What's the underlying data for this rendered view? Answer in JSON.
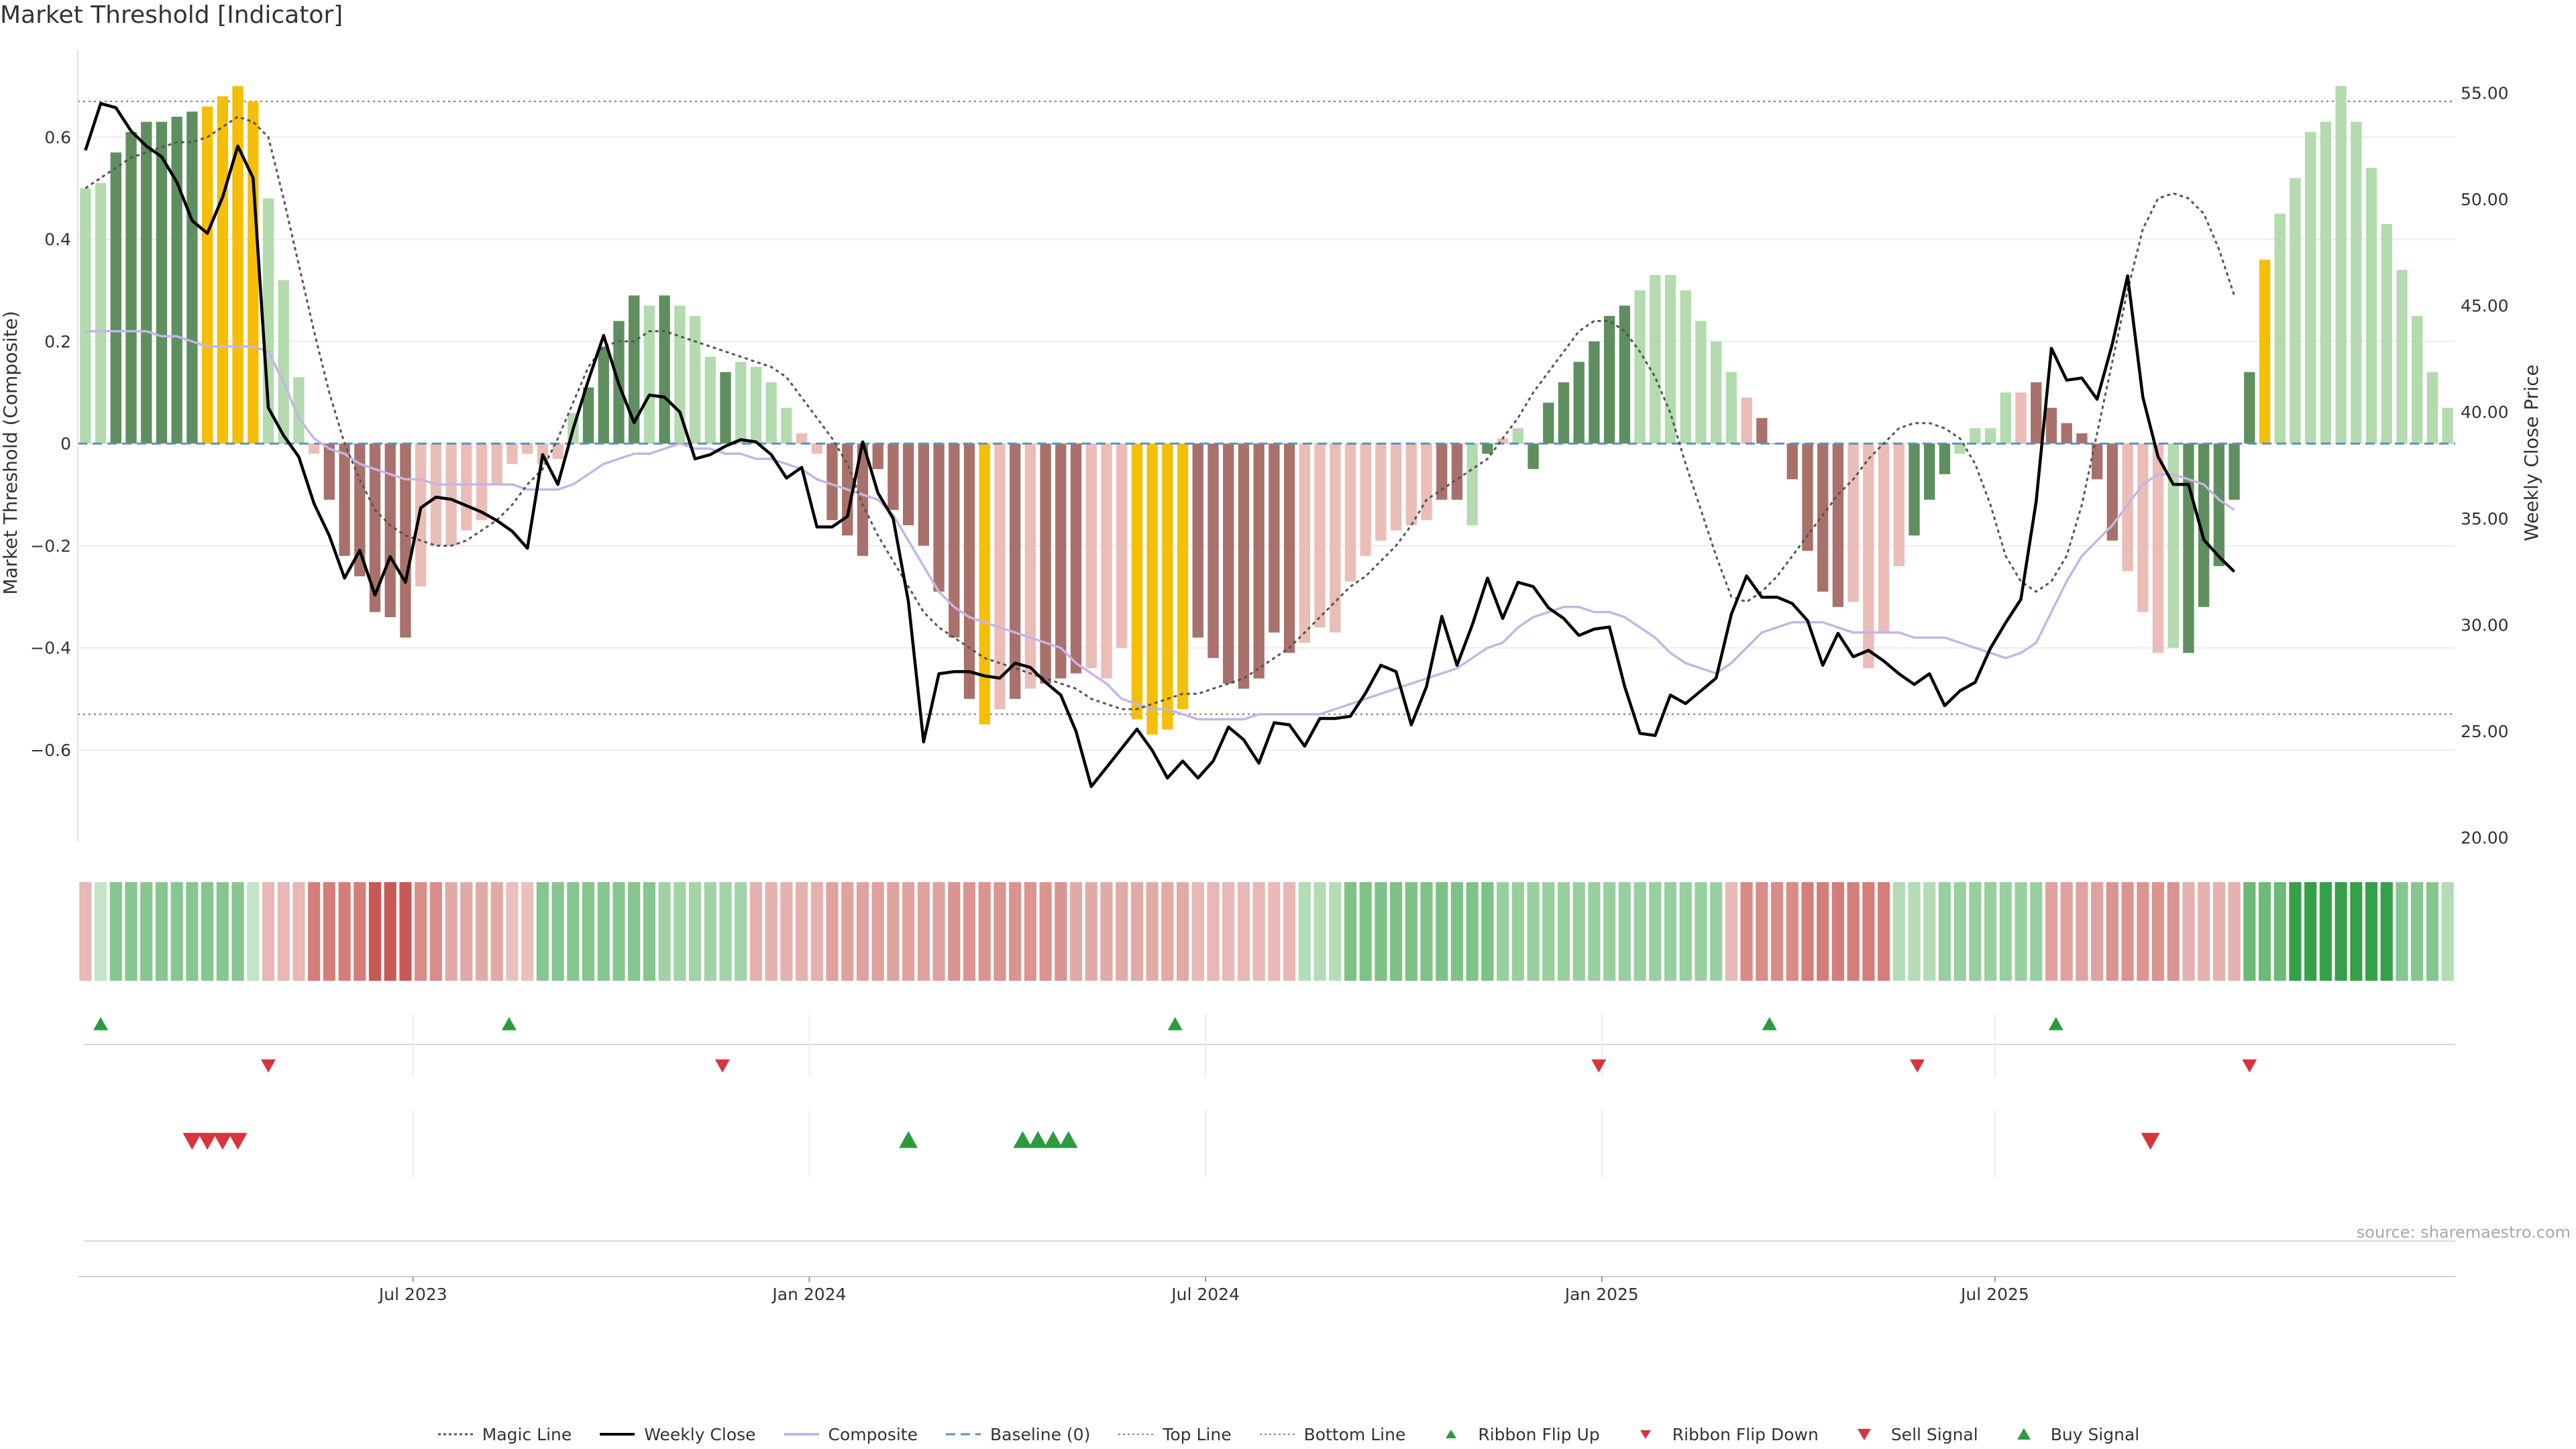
{
  "title": "Market Threshold [Indicator]",
  "source": "source: sharemaestro.com",
  "colors": {
    "green_dark": "#5f8f5f",
    "green_light": "#b3dbae",
    "red_dark": "#a9716b",
    "red_light": "#ebbdb7",
    "gold": "#f5bf09",
    "weekly_close": "#000000",
    "composite": "#c3b6e3",
    "magic": "#555555",
    "baseline": "#5b90c4",
    "buy": "#2e9a3e",
    "sell": "#d9343e"
  },
  "legend": [
    {
      "label": "Magic Line",
      "icon": "dotted-line"
    },
    {
      "label": "Weekly Close",
      "icon": "solid-line"
    },
    {
      "label": "Composite",
      "icon": "thin-line"
    },
    {
      "label": "Baseline (0)",
      "icon": "dashed-line"
    },
    {
      "label": "Top Line",
      "icon": "fine-dotted-line"
    },
    {
      "label": "Bottom Line",
      "icon": "fine-dotted-line"
    },
    {
      "label": "Ribbon Flip Up",
      "icon": "triangle-up-small"
    },
    {
      "label": "Ribbon Flip Down",
      "icon": "triangle-down-small"
    },
    {
      "label": "Sell Signal",
      "icon": "triangle-down"
    },
    {
      "label": "Buy Signal",
      "icon": "triangle-up"
    }
  ],
  "chart_data": {
    "type": "bar",
    "ylabel": "Market Threshold (Composite)",
    "y2label": "Weekly Close Price",
    "ylim": [
      -0.78,
      0.77
    ],
    "y2lim": [
      19.8,
      57.0
    ],
    "yticks": [
      0.6,
      0.4,
      0.2,
      0,
      -0.2,
      -0.4,
      -0.6
    ],
    "ytick_labels": [
      "0.6",
      "0.4",
      "0.2",
      "0",
      "−0.2",
      "−0.4",
      "−0.6"
    ],
    "y2ticks": [
      55,
      50,
      45,
      40,
      35,
      30,
      25,
      20
    ],
    "y2tick_labels": [
      "55.00",
      "50.00",
      "45.00",
      "40.00",
      "35.00",
      "30.00",
      "25.00",
      "20.00"
    ],
    "xlabels": [
      {
        "label": "Jul 2023",
        "week": 21.5
      },
      {
        "label": "Jan 2024",
        "week": 47.5
      },
      {
        "label": "Jul 2024",
        "week": 73.5
      },
      {
        "label": "Jan 2025",
        "week": 99.5
      },
      {
        "label": "Jul 2025",
        "week": 125.3
      }
    ],
    "top_line": 0.67,
    "bottom_line": -0.53,
    "baseline": 0,
    "bar_values": [
      0.5,
      0.51,
      0.57,
      0.61,
      0.63,
      0.63,
      0.64,
      0.65,
      0.66,
      0.68,
      0.7,
      0.67,
      0.48,
      0.32,
      0.13,
      -0.02,
      -0.11,
      -0.22,
      -0.26,
      -0.33,
      -0.34,
      -0.38,
      -0.28,
      -0.2,
      -0.2,
      -0.17,
      -0.15,
      -0.08,
      -0.04,
      -0.02,
      -0.04,
      -0.03,
      0.06,
      0.11,
      0.19,
      0.24,
      0.29,
      0.27,
      0.29,
      0.27,
      0.25,
      0.17,
      0.14,
      0.16,
      0.15,
      0.12,
      0.07,
      0.02,
      -0.02,
      -0.15,
      -0.18,
      -0.22,
      -0.05,
      -0.13,
      -0.16,
      -0.2,
      -0.29,
      -0.38,
      -0.5,
      -0.55,
      -0.52,
      -0.5,
      -0.48,
      -0.47,
      -0.46,
      -0.45,
      -0.44,
      -0.46,
      -0.4,
      -0.54,
      -0.57,
      -0.56,
      -0.52,
      -0.38,
      -0.42,
      -0.47,
      -0.48,
      -0.46,
      -0.37,
      -0.41,
      -0.39,
      -0.36,
      -0.37,
      -0.27,
      -0.22,
      -0.19,
      -0.17,
      -0.16,
      -0.15,
      -0.11,
      -0.11,
      -0.16,
      -0.02,
      0.01,
      0.03,
      -0.05,
      0.08,
      0.12,
      0.16,
      0.2,
      0.25,
      0.27,
      0.3,
      0.33,
      0.33,
      0.3,
      0.24,
      0.2,
      0.14,
      0.09,
      0.05,
      0,
      -0.07,
      -0.21,
      -0.29,
      -0.32,
      -0.31,
      -0.44,
      -0.37,
      -0.24,
      -0.18,
      -0.11,
      -0.06,
      -0.02,
      0.03,
      0.03,
      0.1,
      0.1,
      0.12,
      0.07,
      0.04,
      0.02,
      -0.07,
      -0.19,
      -0.25,
      -0.33,
      -0.41,
      -0.4,
      -0.41,
      -0.32,
      -0.24,
      -0.11,
      0.14,
      0.36,
      0.45,
      0.52,
      0.61,
      0.63,
      0.7,
      0.63,
      0.54,
      0.43,
      0.34,
      0.25,
      0.14,
      0.07
    ],
    "bar_styles": [
      "l",
      "l",
      "d",
      "d",
      "d",
      "d",
      "d",
      "d",
      "g",
      "g",
      "g",
      "g",
      "l",
      "l",
      "l",
      "r",
      "R",
      "R",
      "R",
      "R",
      "R",
      "R",
      "r",
      "r",
      "r",
      "r",
      "r",
      "r",
      "r",
      "r",
      "r",
      "r",
      "l",
      "d",
      "d",
      "d",
      "d",
      "l",
      "d",
      "l",
      "l",
      "l",
      "d",
      "l",
      "l",
      "l",
      "l",
      "r",
      "r",
      "R",
      "R",
      "R",
      "R",
      "R",
      "R",
      "R",
      "R",
      "R",
      "R",
      "g",
      "r",
      "R",
      "r",
      "R",
      "R",
      "R",
      "r",
      "r",
      "r",
      "g",
      "g",
      "g",
      "g",
      "R",
      "R",
      "R",
      "R",
      "R",
      "R",
      "R",
      "r",
      "r",
      "r",
      "r",
      "r",
      "r",
      "r",
      "r",
      "r",
      "R",
      "R",
      "l",
      "d",
      "r",
      "l",
      "d",
      "d",
      "d",
      "d",
      "d",
      "d",
      "d",
      "l",
      "l",
      "l",
      "l",
      "l",
      "l",
      "l",
      "r",
      "R",
      "R",
      "R",
      "R",
      "R",
      "R",
      "r",
      "r",
      "r",
      "r",
      "d",
      "d",
      "d",
      "l",
      "l",
      "l",
      "l",
      "r",
      "R",
      "R",
      "R",
      "R",
      "R",
      "R",
      "r",
      "r",
      "r",
      "l",
      "d",
      "d",
      "d",
      "d",
      "d",
      "g",
      "l",
      "l",
      "l",
      "l",
      "l",
      "l"
    ],
    "weekly_close": [
      52.3,
      54.5,
      54.3,
      53.2,
      52.5,
      52,
      50.8,
      49,
      48.4,
      50.1,
      52.5,
      51,
      40.2,
      38.9,
      37.9,
      35.7,
      34.2,
      32.2,
      33.5,
      31.4,
      33.2,
      32,
      35.5,
      36,
      35.9,
      35.6,
      35.3,
      34.9,
      34.4,
      33.6,
      38,
      36.6,
      39.2,
      41.5,
      43.6,
      41.3,
      39.5,
      40.8,
      40.7,
      40,
      37.8,
      38,
      38.4,
      38.7,
      38.6,
      38,
      36.9,
      37.4,
      34.6,
      34.6,
      35.1,
      38.6,
      36.2,
      35,
      31.1,
      24.5,
      27.7,
      27.8,
      27.8,
      27.6,
      27.5,
      28.2,
      28,
      27.3,
      26.7,
      25,
      22.4,
      23.3,
      24.2,
      25.1,
      24.1,
      22.8,
      23.6,
      22.8,
      23.6,
      25.2,
      24.6,
      23.5,
      25.4,
      25.3,
      24.3,
      25.6,
      25.6,
      25.7,
      26.8,
      28.1,
      27.8,
      25.3,
      27.1,
      30.4,
      28.1,
      30,
      32.2,
      30.3,
      32,
      31.8,
      30.8,
      30.3,
      29.5,
      29.8,
      29.9,
      27.1,
      24.9,
      24.8,
      26.7,
      26.3,
      26.9,
      27.5,
      30.5,
      32.3,
      31.3,
      31.3,
      31,
      30.2,
      28.1,
      29.6,
      28.5,
      28.8,
      28.3,
      27.7,
      27.2,
      27.7,
      26.2,
      26.9,
      27.3,
      28.9,
      30.1,
      31.2,
      35.8,
      43,
      41.5,
      41.6,
      40.6,
      43.2,
      46.4,
      40.7,
      37.9,
      36.6,
      36.6,
      34,
      33.2,
      32.5
    ],
    "composite": [
      0.22,
      0.22,
      0.22,
      0.22,
      0.22,
      0.21,
      0.21,
      0.2,
      0.19,
      0.19,
      0.19,
      0.19,
      0.18,
      0.12,
      0.05,
      0.01,
      -0.01,
      -0.02,
      -0.04,
      -0.05,
      -0.06,
      -0.07,
      -0.07,
      -0.08,
      -0.08,
      -0.08,
      -0.08,
      -0.08,
      -0.08,
      -0.09,
      -0.09,
      -0.09,
      -0.08,
      -0.06,
      -0.04,
      -0.03,
      -0.02,
      -0.02,
      -0.01,
      0,
      -0.01,
      -0.01,
      -0.02,
      -0.02,
      -0.03,
      -0.03,
      -0.04,
      -0.05,
      -0.07,
      -0.08,
      -0.09,
      -0.1,
      -0.11,
      -0.14,
      -0.19,
      -0.24,
      -0.29,
      -0.32,
      -0.34,
      -0.35,
      -0.36,
      -0.37,
      -0.38,
      -0.39,
      -0.4,
      -0.43,
      -0.45,
      -0.47,
      -0.5,
      -0.51,
      -0.52,
      -0.52,
      -0.53,
      -0.54,
      -0.54,
      -0.54,
      -0.54,
      -0.53,
      -0.53,
      -0.53,
      -0.53,
      -0.53,
      -0.52,
      -0.51,
      -0.5,
      -0.49,
      -0.48,
      -0.47,
      -0.46,
      -0.45,
      -0.44,
      -0.42,
      -0.4,
      -0.39,
      -0.36,
      -0.34,
      -0.33,
      -0.32,
      -0.32,
      -0.33,
      -0.33,
      -0.34,
      -0.36,
      -0.38,
      -0.41,
      -0.43,
      -0.44,
      -0.45,
      -0.43,
      -0.4,
      -0.37,
      -0.36,
      -0.35,
      -0.35,
      -0.35,
      -0.36,
      -0.37,
      -0.37,
      -0.37,
      -0.37,
      -0.38,
      -0.38,
      -0.38,
      -0.39,
      -0.4,
      -0.41,
      -0.42,
      -0.41,
      -0.39,
      -0.33,
      -0.27,
      -0.22,
      -0.19,
      -0.16,
      -0.12,
      -0.08,
      -0.06,
      -0.06,
      -0.07,
      -0.08,
      -0.11,
      -0.13
    ],
    "magic_line": [
      0.5,
      0.52,
      0.54,
      0.56,
      0.57,
      0.58,
      0.59,
      0.59,
      0.6,
      0.62,
      0.64,
      0.63,
      0.6,
      0.48,
      0.35,
      0.22,
      0.1,
      0,
      -0.07,
      -0.13,
      -0.16,
      -0.18,
      -0.19,
      -0.2,
      -0.2,
      -0.19,
      -0.17,
      -0.15,
      -0.12,
      -0.08,
      -0.05,
      0.01,
      0.08,
      0.15,
      0.19,
      0.2,
      0.2,
      0.22,
      0.22,
      0.21,
      0.2,
      0.19,
      0.18,
      0.17,
      0.16,
      0.15,
      0.13,
      0.09,
      0.05,
      0.01,
      -0.04,
      -0.12,
      -0.18,
      -0.23,
      -0.28,
      -0.33,
      -0.36,
      -0.38,
      -0.4,
      -0.42,
      -0.43,
      -0.44,
      -0.45,
      -0.46,
      -0.47,
      -0.48,
      -0.5,
      -0.51,
      -0.52,
      -0.52,
      -0.51,
      -0.5,
      -0.49,
      -0.49,
      -0.48,
      -0.47,
      -0.46,
      -0.44,
      -0.42,
      -0.4,
      -0.37,
      -0.34,
      -0.31,
      -0.28,
      -0.26,
      -0.23,
      -0.2,
      -0.16,
      -0.11,
      -0.09,
      -0.07,
      -0.05,
      -0.03,
      0.01,
      0.05,
      0.1,
      0.14,
      0.18,
      0.22,
      0.24,
      0.24,
      0.22,
      0.18,
      0.13,
      0.06,
      -0.04,
      -0.13,
      -0.22,
      -0.3,
      -0.31,
      -0.29,
      -0.26,
      -0.22,
      -0.18,
      -0.14,
      -0.1,
      -0.07,
      -0.03,
      0,
      0.03,
      0.04,
      0.04,
      0.03,
      0.01,
      -0.04,
      -0.12,
      -0.22,
      -0.27,
      -0.29,
      -0.27,
      -0.22,
      -0.12,
      0.02,
      0.16,
      0.3,
      0.42,
      0.48,
      0.49,
      0.48,
      0.45,
      0.38,
      0.29
    ],
    "ribbon": [
      {
        "value": -0.3,
        "weeks": 1
      },
      {
        "value": 0.2,
        "weeks": 1
      },
      {
        "value": 0.55,
        "weeks": 9
      },
      {
        "value": 0.2,
        "weeks": 1
      },
      {
        "value": -0.3,
        "weeks": 3
      },
      {
        "value": -0.7,
        "weeks": 4
      },
      {
        "value": -0.95,
        "weeks": 3
      },
      {
        "value": -0.6,
        "weeks": 2
      },
      {
        "value": -0.4,
        "weeks": 4
      },
      {
        "value": -0.25,
        "weeks": 2
      },
      {
        "value": 0.55,
        "weeks": 8
      },
      {
        "value": 0.4,
        "weeks": 6
      },
      {
        "value": -0.35,
        "weeks": 5
      },
      {
        "value": -0.45,
        "weeks": 8
      },
      {
        "value": -0.55,
        "weeks": 8
      },
      {
        "value": -0.4,
        "weeks": 8
      },
      {
        "value": -0.3,
        "weeks": 7
      },
      {
        "value": 0.3,
        "weeks": 3
      },
      {
        "value": 0.6,
        "weeks": 10
      },
      {
        "value": 0.45,
        "weeks": 15
      },
      {
        "value": -0.3,
        "weeks": 1
      },
      {
        "value": -0.6,
        "weeks": 4
      },
      {
        "value": -0.7,
        "weeks": 6
      },
      {
        "value": 0.3,
        "weeks": 3
      },
      {
        "value": 0.45,
        "weeks": 7
      },
      {
        "value": -0.45,
        "weeks": 4
      },
      {
        "value": -0.55,
        "weeks": 5
      },
      {
        "value": -0.35,
        "weeks": 4
      },
      {
        "value": 0.7,
        "weeks": 3
      },
      {
        "value": 1.0,
        "weeks": 7
      },
      {
        "value": 0.55,
        "weeks": 3
      },
      {
        "value": 0.3,
        "weeks": 1
      }
    ],
    "flip_up": [
      1,
      27.8,
      71.5,
      110.5,
      129.3
    ],
    "flip_down": [
      12,
      41.8,
      99.3,
      120.2,
      142
    ],
    "sell_signals": [
      7,
      8,
      9,
      10,
      135.5
    ],
    "buy_signals": [
      54,
      61.5,
      62.5,
      63.5,
      64.5
    ]
  }
}
